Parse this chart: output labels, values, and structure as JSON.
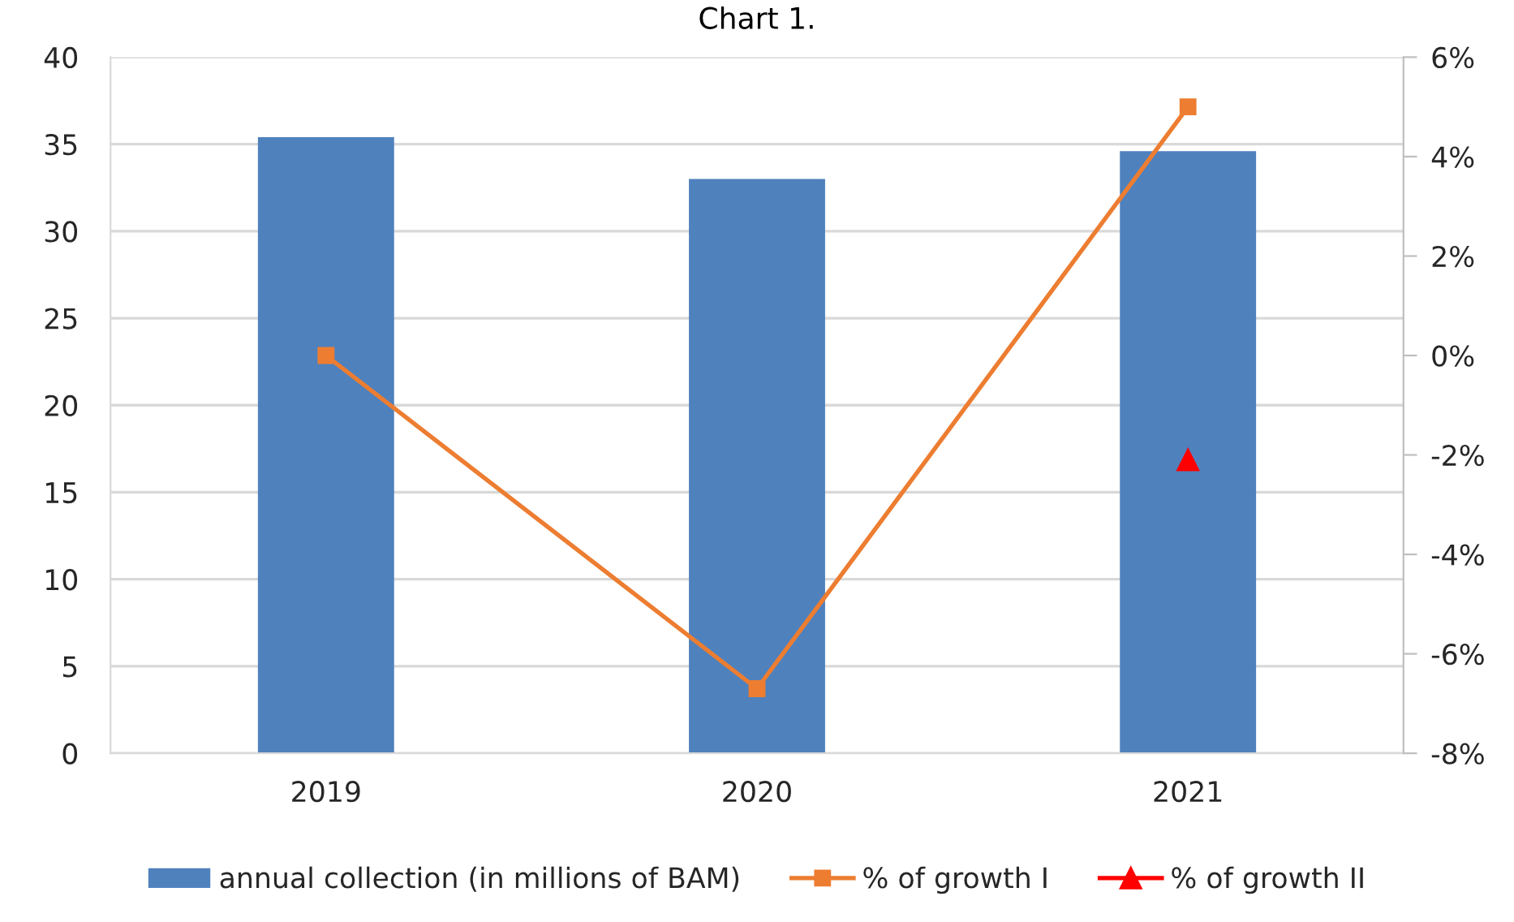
{
  "chart_data": {
    "type": "bar",
    "title": "Chart 1.",
    "categories": [
      "2019",
      "2020",
      "2021"
    ],
    "series": [
      {
        "name": "annual collection (in millions of BAM)",
        "color": "#4f81bd",
        "values": [
          35.4,
          33.0,
          34.6
        ]
      },
      {
        "name": "% of growth I",
        "type": "line",
        "axis": "y2",
        "color": "#ed7d31",
        "marker": "square",
        "values": [
          0.0,
          -6.7,
          5.0
        ]
      },
      {
        "name": "% of growth II",
        "type": "line",
        "axis": "y2",
        "color": "#ff0000",
        "marker": "triangle",
        "values": [
          null,
          null,
          -2.1
        ]
      }
    ],
    "ylim": [
      0,
      40
    ],
    "yticks": [
      0,
      5,
      10,
      15,
      20,
      25,
      30,
      35,
      40
    ],
    "y2lim": [
      -8,
      6
    ],
    "y2ticks": [
      {
        "value": -8,
        "label": "-8%"
      },
      {
        "value": -6,
        "label": "-6%"
      },
      {
        "value": -4,
        "label": "-4%"
      },
      {
        "value": -2,
        "label": "-2%"
      },
      {
        "value": 0,
        "label": "0%"
      },
      {
        "value": 2,
        "label": "2%"
      },
      {
        "value": 4,
        "label": "4%"
      },
      {
        "value": 6,
        "label": "6%"
      }
    ],
    "grid": "y",
    "legend": "bottom"
  }
}
